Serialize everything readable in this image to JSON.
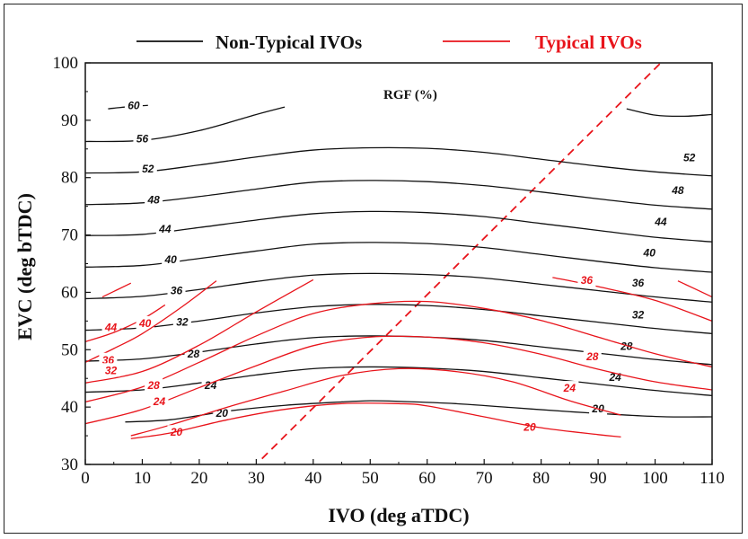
{
  "chart_data": {
    "type": "line",
    "annotation": "RGF (%)",
    "xlabel": "IVO (deg aTDC)",
    "ylabel": "EVC (deg bTDC)",
    "xlim": [
      0,
      110
    ],
    "ylim": [
      30,
      100
    ],
    "xticks": [
      "0",
      "10",
      "20",
      "30",
      "40",
      "50",
      "60",
      "70",
      "80",
      "90",
      "100",
      "110"
    ],
    "yticks": [
      "30",
      "40",
      "50",
      "60",
      "70",
      "80",
      "90",
      "100"
    ],
    "legend": [
      {
        "label": "Non-Typical IVOs",
        "color": "#111111"
      },
      {
        "label": "Typical IVOs",
        "color": "#e8141b"
      }
    ],
    "colors": {
      "non_typical": "#111111",
      "typical": "#e8141b"
    },
    "series": [
      {
        "group": "non_typical",
        "label": "60",
        "x": [
          4,
          8,
          11
        ],
        "y": [
          92,
          92.4,
          92.6
        ],
        "label_at": [
          8.5,
          92.6
        ]
      },
      {
        "group": "non_typical",
        "label": "56",
        "x": [
          0,
          10,
          20,
          30,
          35
        ],
        "y": [
          86.3,
          86.5,
          88.2,
          91,
          92.3
        ],
        "label_at": [
          10,
          86.8
        ]
      },
      {
        "group": "non_typical",
        "label": "52",
        "x": [
          0,
          10,
          20,
          30,
          40,
          50,
          60,
          70,
          80,
          90,
          100,
          110
        ],
        "y": [
          80.8,
          81,
          82.2,
          83.6,
          84.8,
          85.2,
          85.1,
          84.4,
          83.2,
          82,
          81,
          80.3
        ],
        "label_at": [
          11,
          81.5
        ],
        "label_at2": [
          106,
          83.5
        ]
      },
      {
        "group": "non_typical",
        "label": "48",
        "x": [
          0,
          10,
          20,
          30,
          40,
          50,
          60,
          70,
          80,
          90,
          100,
          110
        ],
        "y": [
          75.3,
          75.6,
          76.7,
          78,
          79.2,
          79.5,
          79.3,
          78.6,
          77.5,
          76.3,
          75.2,
          74.5
        ],
        "label_at": [
          12,
          76.1
        ],
        "label_at2": [
          104,
          77.8
        ]
      },
      {
        "group": "non_typical",
        "label": "44",
        "x": [
          0,
          10,
          20,
          30,
          40,
          50,
          60,
          70,
          80,
          90,
          100,
          110
        ],
        "y": [
          69.9,
          70.1,
          71.3,
          72.6,
          73.7,
          74.1,
          73.9,
          73.2,
          72,
          70.8,
          69.6,
          68.8
        ],
        "label_at": [
          14,
          71
        ],
        "label_at2": [
          101,
          72.3
        ]
      },
      {
        "group": "non_typical",
        "label": "40",
        "x": [
          0,
          10,
          20,
          30,
          40,
          50,
          60,
          70,
          80,
          90,
          100,
          110
        ],
        "y": [
          64.4,
          64.7,
          65.9,
          67.2,
          68.4,
          68.7,
          68.5,
          67.8,
          66.6,
          65.4,
          64.3,
          63.5
        ],
        "label_at": [
          15,
          65.7
        ],
        "label_at2": [
          99,
          66.9
        ]
      },
      {
        "group": "non_typical",
        "label": "36",
        "x": [
          0,
          10,
          20,
          30,
          40,
          50,
          60,
          70,
          80,
          90,
          100,
          110
        ],
        "y": [
          58.9,
          59.3,
          60.5,
          61.9,
          63,
          63.3,
          63.1,
          62.5,
          61.4,
          60.3,
          59.2,
          58.3
        ],
        "label_at": [
          16,
          60.3
        ],
        "label_at2": [
          97,
          61.6
        ]
      },
      {
        "group": "non_typical",
        "label": "32",
        "x": [
          0,
          10,
          20,
          30,
          40,
          50,
          60,
          70,
          80,
          90,
          100,
          110
        ],
        "y": [
          53.4,
          53.8,
          55,
          56.4,
          57.5,
          57.9,
          57.7,
          57,
          55.9,
          54.8,
          53.7,
          52.8
        ],
        "label_at": [
          17,
          54.8
        ],
        "label_at2": [
          97,
          56.1
        ]
      },
      {
        "group": "non_typical",
        "label": "28",
        "x": [
          0,
          10,
          20,
          30,
          40,
          50,
          60,
          70,
          80,
          90,
          100,
          110
        ],
        "y": [
          48,
          48.4,
          49.6,
          51,
          52.1,
          52.4,
          52.2,
          51.6,
          50.5,
          49.4,
          48.3,
          47.4
        ],
        "label_at": [
          19,
          49.3
        ],
        "label_at2": [
          95,
          50.6
        ]
      },
      {
        "group": "non_typical",
        "label": "24",
        "x": [
          0,
          10,
          20,
          30,
          40,
          50,
          60,
          70,
          80,
          90,
          100,
          110
        ],
        "y": [
          42.6,
          43,
          44.2,
          45.6,
          46.7,
          47,
          46.8,
          46.2,
          45.1,
          44,
          42.9,
          42
        ],
        "label_at": [
          22,
          43.8
        ],
        "label_at2": [
          93,
          45.2
        ]
      },
      {
        "group": "non_typical",
        "label": "20",
        "x": [
          7,
          15,
          25,
          35,
          45,
          50,
          55,
          65,
          75,
          85,
          95,
          102,
          110
        ],
        "y": [
          37.4,
          37.8,
          39.3,
          40.3,
          40.9,
          41.1,
          41,
          40.6,
          39.9,
          39.2,
          38.6,
          38.3,
          38.3
        ],
        "label_at": [
          24,
          38.9
        ],
        "label_at2": [
          90,
          39.7
        ]
      },
      {
        "group": "non_typical",
        "label": "",
        "x": [
          95,
          100,
          105,
          110
        ],
        "y": [
          92,
          90.9,
          90.7,
          91
        ],
        "label_at": null
      },
      {
        "group": "typical",
        "label": "44",
        "x": [
          3,
          8
        ],
        "y": [
          59.2,
          61.6
        ],
        "label_at": [
          4.5,
          53.9
        ]
      },
      {
        "group": "typical",
        "label": "40",
        "x": [
          0,
          5,
          10,
          14
        ],
        "y": [
          51.4,
          53,
          55.3,
          57.8
        ],
        "label_at": [
          10.5,
          54.6
        ]
      },
      {
        "group": "typical",
        "label": "36",
        "x": [
          0,
          5,
          10,
          17,
          23
        ],
        "y": [
          47.8,
          50.2,
          52.8,
          57.5,
          62
        ],
        "label_at": [
          4,
          48.2
        ]
      },
      {
        "group": "typical",
        "label": "32",
        "x": [
          0,
          10,
          20,
          30,
          40
        ],
        "y": [
          44.2,
          46.2,
          50.8,
          56.6,
          62.2
        ],
        "label_at": [
          4.5,
          46.4
        ]
      },
      {
        "group": "typical",
        "label": "28",
        "x": [
          0,
          10,
          20,
          30,
          40,
          50,
          60,
          70,
          80,
          90,
          100,
          110
        ],
        "y": [
          40.9,
          43.5,
          47.8,
          52.4,
          56.3,
          58,
          58.4,
          57.2,
          55.1,
          52.2,
          49.3,
          47
        ],
        "label_at": [
          12,
          43.8
        ],
        "label_at2": [
          89,
          48.8
        ]
      },
      {
        "group": "typical",
        "label": "24",
        "x": [
          0,
          10,
          20,
          30,
          40,
          50,
          60,
          70,
          80,
          90,
          100,
          110
        ],
        "y": [
          37.1,
          39.6,
          43.4,
          47.2,
          50.7,
          52.2,
          52.2,
          51.2,
          49.2,
          46.6,
          44.4,
          43
        ],
        "label_at": [
          13,
          41
        ],
        "label_at2": [
          85,
          43.3
        ]
      },
      {
        "group": "typical",
        "label": "20",
        "x": [
          8,
          15,
          25,
          35,
          45,
          55,
          65,
          75,
          85,
          94
        ],
        "y": [
          35,
          36.9,
          40,
          42.8,
          45.5,
          46.7,
          46.2,
          44.4,
          41.1,
          38.6
        ],
        "label_at": [
          16,
          35.6
        ],
        "label_at2": [
          78,
          36.5
        ]
      },
      {
        "group": "typical",
        "label": "",
        "x": [
          8,
          15,
          25,
          35,
          45,
          55,
          60,
          70,
          80,
          90,
          94
        ],
        "y": [
          34.5,
          35.5,
          37.8,
          39.6,
          40.6,
          40.6,
          40.2,
          38.3,
          36.4,
          35.2,
          34.8
        ],
        "label_at": null
      },
      {
        "group": "typical",
        "label": "36",
        "x": [
          82,
          90,
          100,
          110
        ],
        "y": [
          62.6,
          61,
          58.6,
          55
        ],
        "label_at": [
          88,
          62.1
        ]
      },
      {
        "group": "typical",
        "label": "",
        "x": [
          104,
          110
        ],
        "y": [
          62,
          59.2
        ],
        "label_at": null
      }
    ],
    "diagonal": {
      "x": [
        31,
        101
      ],
      "y": [
        31,
        100
      ],
      "color": "#e8141b",
      "style": "dashed"
    }
  }
}
